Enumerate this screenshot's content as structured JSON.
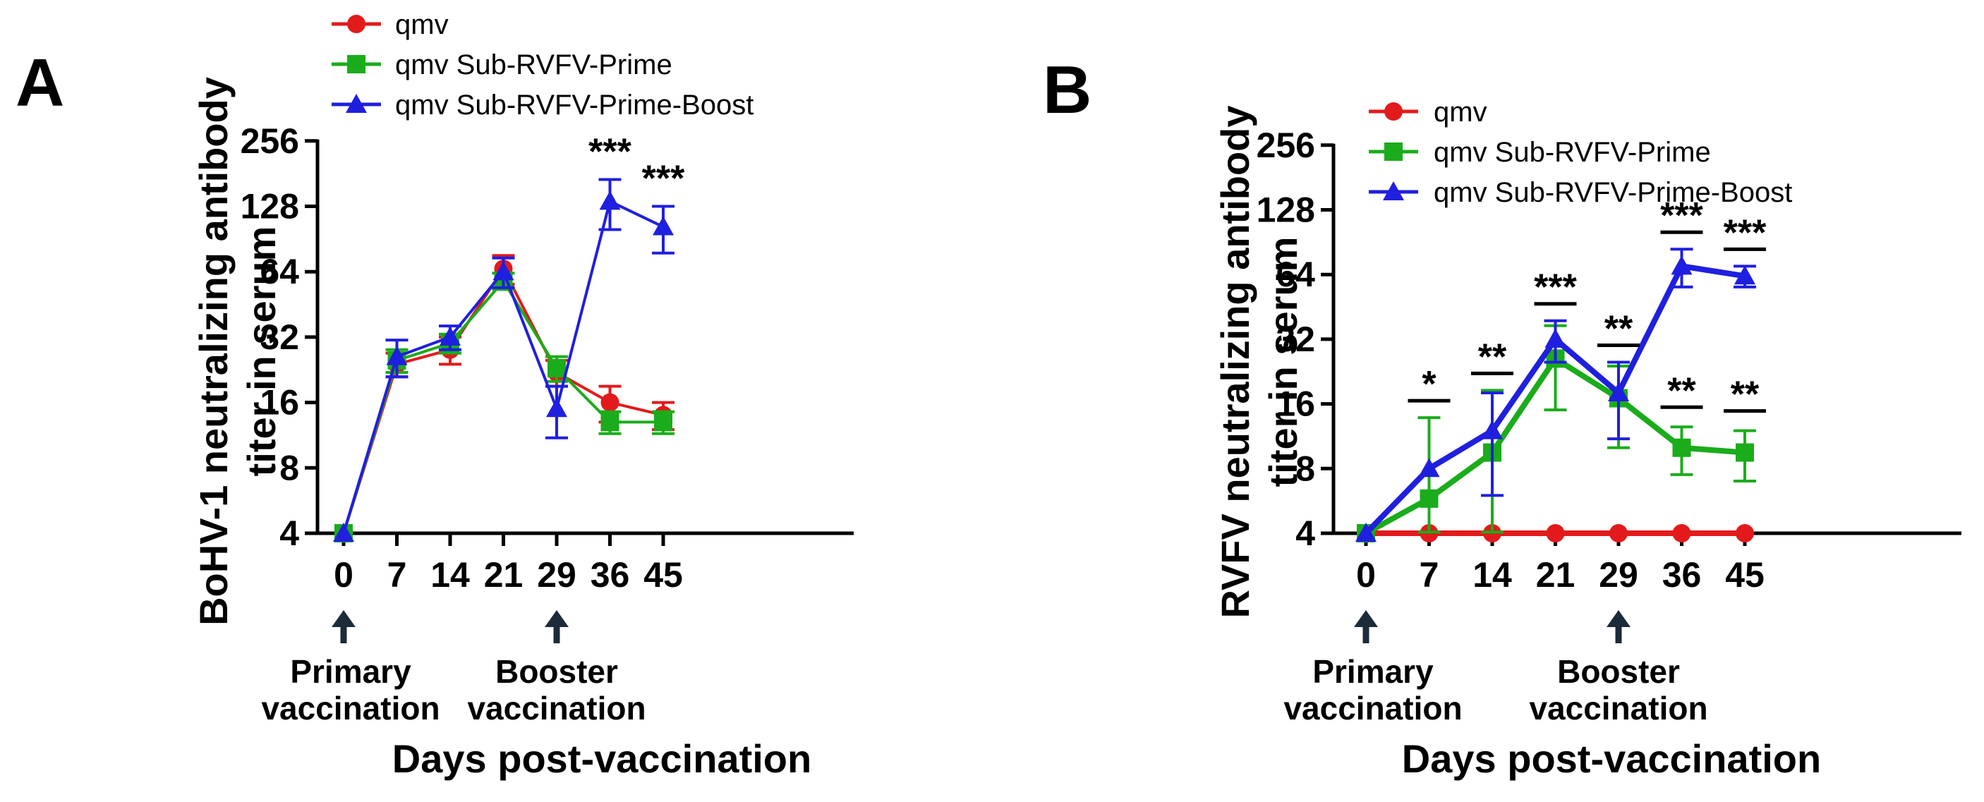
{
  "chart_data": [
    {
      "panel": "A",
      "type": "line",
      "title": "",
      "xlabel": "Days post-vaccination",
      "ylabel": [
        "BoHV-1 neutralizing antibody",
        "titer in serum"
      ],
      "yscale": "log2",
      "ylim": [
        4,
        256
      ],
      "yticks": [
        "4",
        "8",
        "16",
        "32",
        "64",
        "128",
        "256"
      ],
      "categories": [
        "0",
        "7",
        "14",
        "21",
        "29",
        "36",
        "45"
      ],
      "series": [
        {
          "name": "qmv",
          "color": "#e31a1c",
          "marker": "circle",
          "values": [
            4,
            24,
            28,
            66,
            22,
            16,
            14
          ],
          "errors": [
            0,
            3,
            4,
            10,
            3,
            3,
            2
          ]
        },
        {
          "name": "qmv Sub-RVFV-Prime",
          "color": "#1aac1a",
          "marker": "square",
          "values": [
            4,
            25,
            30,
            58,
            23,
            13,
            13
          ],
          "errors": [
            0,
            3,
            3,
            5,
            3,
            1.5,
            1.5
          ]
        },
        {
          "name": "qmv Sub-RVFV-Prime-Boost",
          "color": "#1f1fdf",
          "marker": "triangle",
          "values": [
            4,
            26,
            32,
            64,
            15,
            135,
            103
          ],
          "errors": [
            0,
            5,
            4,
            10,
            4,
            35,
            25
          ]
        }
      ],
      "significance": [
        {
          "x": "36",
          "label": "***"
        },
        {
          "x": "45",
          "label": "***"
        }
      ],
      "annotations": [
        {
          "x": "0",
          "lines": [
            "Primary",
            "vaccination"
          ]
        },
        {
          "x": "29",
          "lines": [
            "Booster",
            "vaccination"
          ]
        }
      ],
      "legend": "top"
    },
    {
      "panel": "B",
      "type": "line",
      "title": "",
      "xlabel": "Days post-vaccination",
      "ylabel": [
        "RVFV neutralizing antibody",
        "titer in serum"
      ],
      "yscale": "log2",
      "ylim": [
        4,
        256
      ],
      "yticks": [
        "4",
        "8",
        "16",
        "32",
        "64",
        "128",
        "256"
      ],
      "categories": [
        "0",
        "7",
        "14",
        "21",
        "29",
        "36",
        "45"
      ],
      "series": [
        {
          "name": "qmv",
          "color": "#e31a1c",
          "marker": "circle",
          "values": [
            4,
            4,
            4,
            4,
            4,
            4,
            4
          ],
          "errors": [
            0,
            0,
            0,
            0,
            0,
            0,
            0
          ]
        },
        {
          "name": "qmv Sub-RVFV-Prime",
          "color": "#1aac1a",
          "marker": "square",
          "values": [
            4,
            5.8,
            9.5,
            26,
            17,
            10,
            9.5
          ],
          "errors": [
            0,
            8,
            9,
            11,
            7,
            2.5,
            2.5
          ]
        },
        {
          "name": "qmv Sub-RVFV-Prime-Boost",
          "color": "#1f1fdf",
          "marker": "triangle",
          "values": [
            4,
            8,
            12,
            32,
            18,
            70,
            63
          ],
          "errors": [
            0,
            0,
            6,
            7,
            7,
            14,
            7
          ]
        }
      ],
      "significance": [
        {
          "x": "7",
          "label": "*"
        },
        {
          "x": "14",
          "label": "**"
        },
        {
          "x": "21",
          "label": "***"
        },
        {
          "x": "29",
          "label": "**"
        },
        {
          "x": "36",
          "label": "***"
        },
        {
          "x": "45",
          "label": "***"
        },
        {
          "x": "36",
          "label": "**",
          "level": "lower"
        },
        {
          "x": "45",
          "label": "**",
          "level": "lower"
        }
      ],
      "annotations": [
        {
          "x": "0",
          "lines": [
            "Primary",
            "vaccination"
          ]
        },
        {
          "x": "29",
          "lines": [
            "Booster",
            "vaccination"
          ]
        }
      ],
      "legend": "top-left"
    }
  ]
}
